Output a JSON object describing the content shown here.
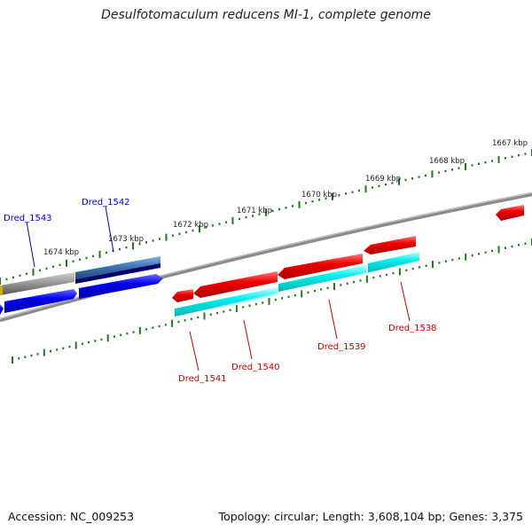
{
  "title": "Desulfotomaculum reducens MI-1, complete genome",
  "footer": {
    "accession": "Accession: NC_009253",
    "summary": "Topology: circular; Length: 3,608,104 bp; Genes: 3,375"
  },
  "colors": {
    "forward_cds": "#0000ee",
    "reverse_cds": "#ee0000",
    "forward_gene": "#2b5f9e",
    "reverse_gene": "#00eeee",
    "backbone": "#888888",
    "tick": "#1e7a1e",
    "label_forward": "#0000cc",
    "label_reverse": "#cc0000"
  },
  "kbp_ticks": [
    "1667 kbp",
    "1668 kbp",
    "1669 kbp",
    "1670 kbp",
    "1671 kbp",
    "1672 kbp",
    "1673 kbp",
    "1674 kbp"
  ],
  "genes": {
    "forward": [
      "Dred_1543",
      "Dred_1542"
    ],
    "reverse": [
      "Dred_1541",
      "Dred_1540",
      "Dred_1539",
      "Dred_1538"
    ]
  }
}
